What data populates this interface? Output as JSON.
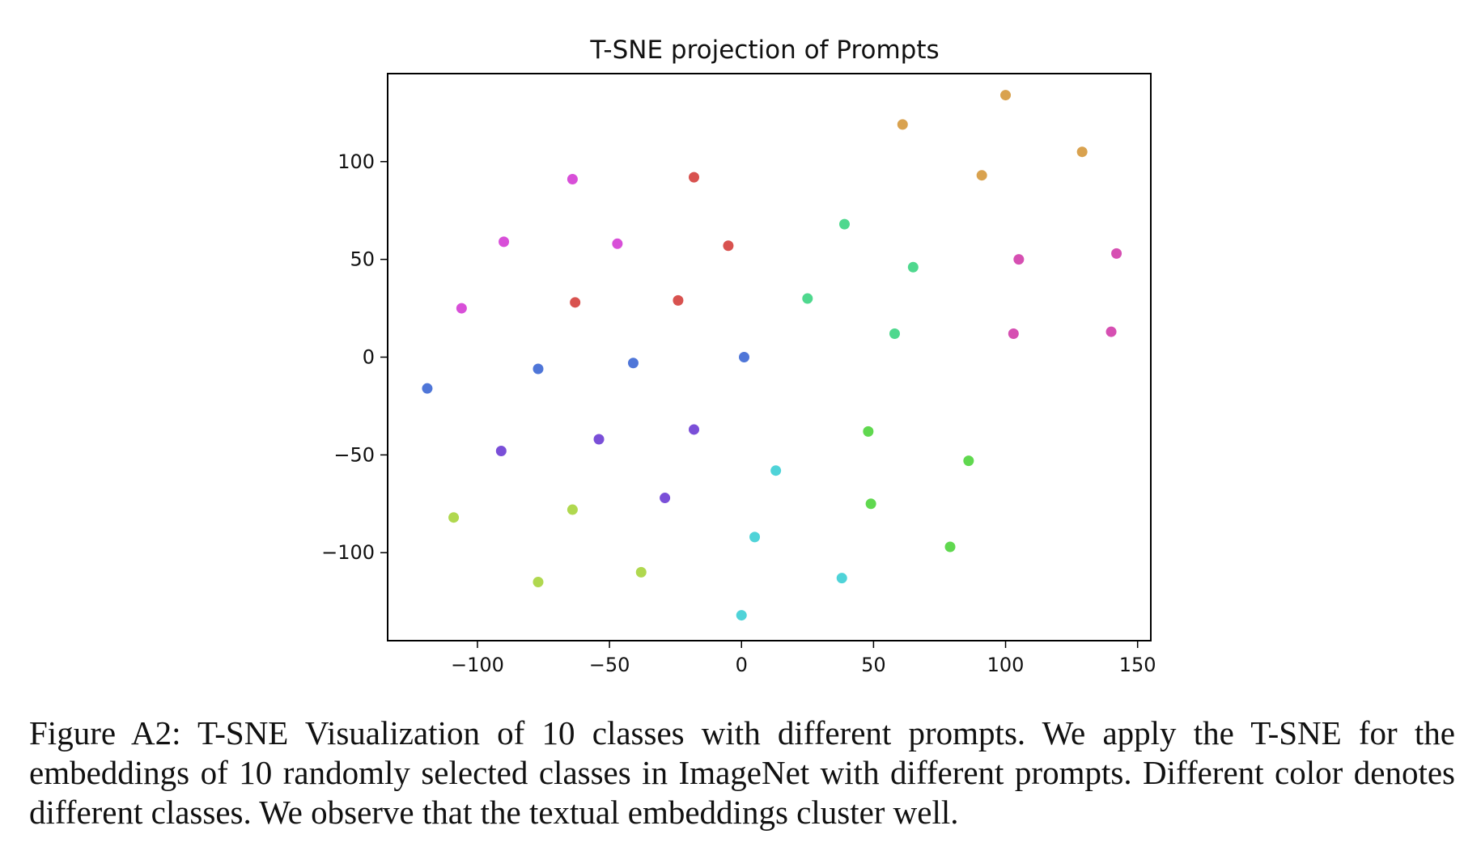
{
  "chart_data": {
    "type": "scatter",
    "title": "T-SNE projection of Prompts",
    "xlabel": "",
    "ylabel": "",
    "xlim": [
      -134,
      155
    ],
    "ylim": [
      -145,
      145
    ],
    "xticks": [
      -100,
      -50,
      0,
      50,
      100,
      150
    ],
    "yticks": [
      100,
      50,
      0,
      -50,
      -100
    ],
    "xtick_labels": [
      "−100",
      "−50",
      "0",
      "50",
      "100",
      "150"
    ],
    "ytick_labels": [
      "100",
      "50",
      "0",
      "−50",
      "−100"
    ],
    "grid": false,
    "legend": "none",
    "series": [
      {
        "color": "#d9a24f",
        "x": [
          61,
          100,
          129,
          91
        ],
        "y": [
          119,
          134,
          105,
          93
        ]
      },
      {
        "color": "#d64fb2",
        "x": [
          105,
          142,
          103,
          140
        ],
        "y": [
          50,
          53,
          12,
          13
        ]
      },
      {
        "color": "#4fd88e",
        "x": [
          39,
          65,
          25,
          58
        ],
        "y": [
          68,
          46,
          30,
          12
        ]
      },
      {
        "color": "#60d84f",
        "x": [
          48,
          86,
          49,
          79
        ],
        "y": [
          -38,
          -53,
          -75,
          -97
        ]
      },
      {
        "color": "#4fd3d8",
        "x": [
          13,
          5,
          38,
          0
        ],
        "y": [
          -58,
          -92,
          -113,
          -132
        ]
      },
      {
        "color": "#b0d84f",
        "x": [
          -109,
          -64,
          -77,
          -38
        ],
        "y": [
          -82,
          -78,
          -115,
          -110
        ]
      },
      {
        "color": "#7a4fd8",
        "x": [
          -91,
          -54,
          -18,
          -29
        ],
        "y": [
          -48,
          -42,
          -37,
          -72
        ]
      },
      {
        "color": "#4f76d8",
        "x": [
          -119,
          -77,
          -41,
          1
        ],
        "y": [
          -16,
          -6,
          -3,
          0
        ]
      },
      {
        "color": "#d84fd8",
        "x": [
          -64,
          -90,
          -47,
          -106
        ],
        "y": [
          91,
          59,
          58,
          25
        ]
      },
      {
        "color": "#d8524f",
        "x": [
          -18,
          -5,
          -63,
          -24
        ],
        "y": [
          92,
          57,
          28,
          29
        ]
      }
    ]
  },
  "caption": {
    "text": "Figure A2: T-SNE Visualization of 10 classes with different prompts. We apply the T-SNE for the embeddings of 10 randomly selected classes in ImageNet with different prompts. Different color denotes different classes. We observe that the textual embeddings cluster well."
  }
}
